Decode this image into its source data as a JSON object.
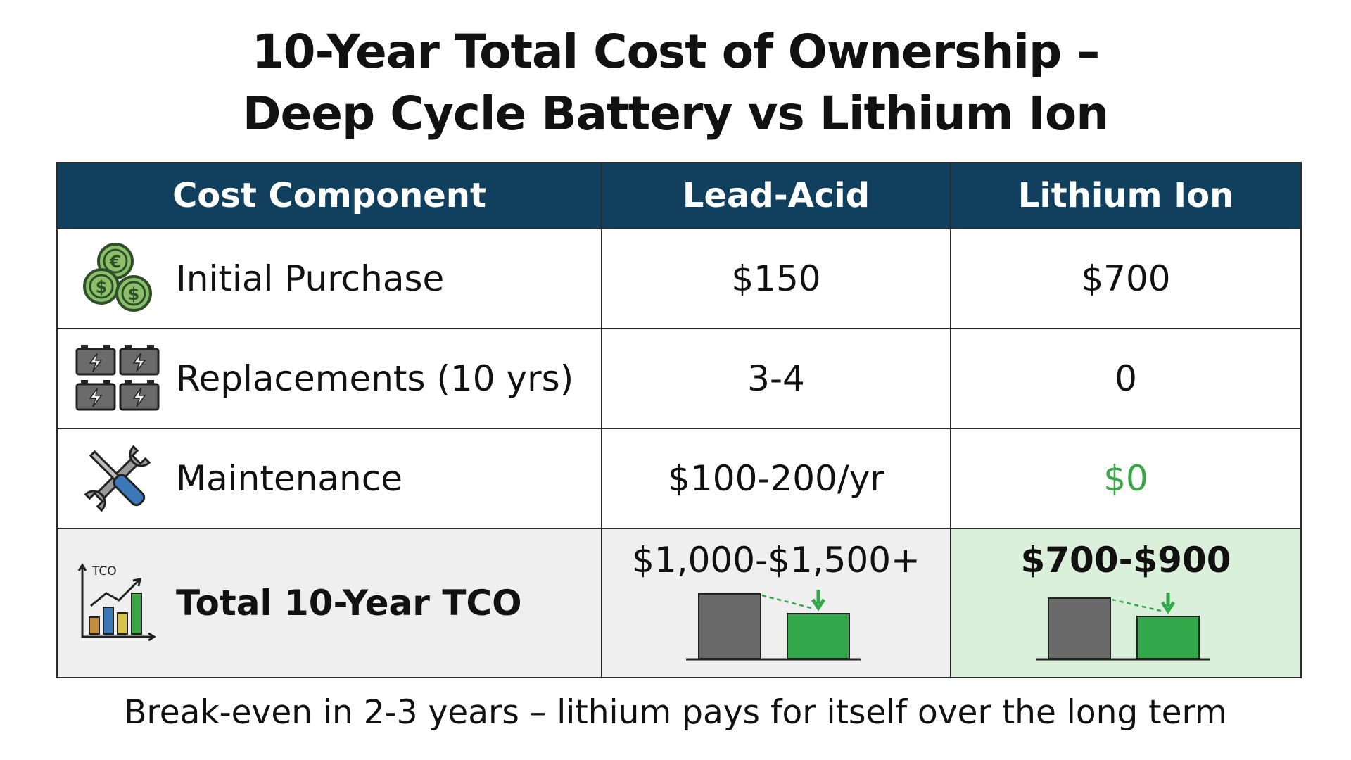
{
  "title": {
    "line1": "10-Year Total Cost of Ownership –",
    "line2": "Deep Cycle Battery vs Lithium Ion"
  },
  "table": {
    "headers": [
      "Cost Component",
      "Lead-Acid",
      "Lithium Ion"
    ],
    "rows": [
      {
        "component": "Initial Purchase",
        "icon": "coins-icon",
        "lead_acid": "$150",
        "lithium_ion": "$700"
      },
      {
        "component": "Replacements (10 yrs)",
        "icon": "batteries-icon",
        "lead_acid": "3-4",
        "lithium_ion": "0"
      },
      {
        "component": "Maintenance",
        "icon": "wrench-screwdriver-icon",
        "lead_acid": "$100-200/yr",
        "lithium_ion": "$0"
      },
      {
        "component": "Total 10-Year TCO",
        "icon": "tco-chart-icon",
        "icon_text": "TCO",
        "lead_acid": "$1,000-$1,500+",
        "lithium_ion": "$700-$900"
      }
    ]
  },
  "footer": "Break-even in 2-3 years – lithium pays for itself over the long term",
  "colors": {
    "header_bg": "#11405f",
    "header_text": "#ffffff",
    "total_row_bg": "#efefef",
    "lithium_total_bg": "#dbf0da",
    "green_value": "#3aa645",
    "bar_gray": "#6a6a6a",
    "bar_green": "#33a84a"
  }
}
